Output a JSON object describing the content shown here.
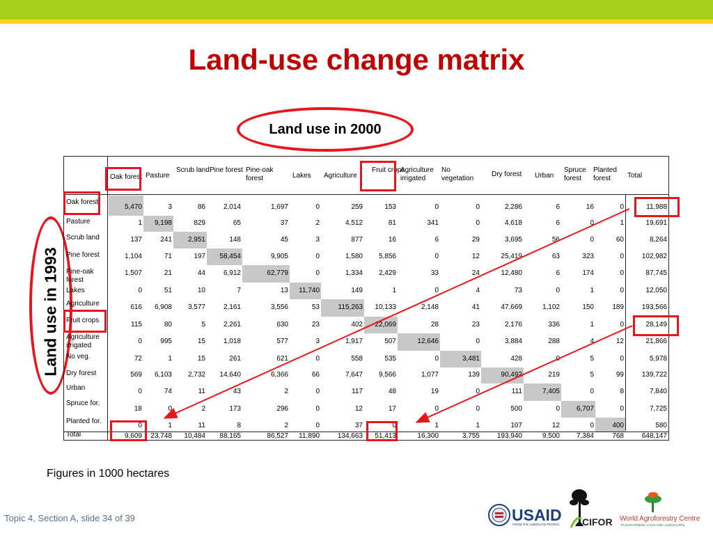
{
  "title": "Land-use change matrix",
  "label_x": "Land use in 2000",
  "label_y": "Land use in 1993",
  "columns": [
    "Oak forest",
    "Pasture",
    "Scrub land",
    "Pine forest",
    "Pine-oak forest",
    "Lakes",
    "Agriculture",
    "Fruit crops",
    "Agriculture irrigated",
    "No vegetation",
    "Dry forest",
    "Urban",
    "Spruce forest",
    "Planted forest",
    "Total"
  ],
  "rows": [
    {
      "label": "Oak forest",
      "values": [
        "5,470",
        "3",
        "86",
        "2,014",
        "1,697",
        "0",
        "259",
        "153",
        "0",
        "0",
        "2,286",
        "6",
        "16",
        "0",
        "11,988"
      ]
    },
    {
      "label": "Pasture",
      "values": [
        "1",
        "9,198",
        "829",
        "65",
        "37",
        "2",
        "4,512",
        "81",
        "341",
        "0",
        "4,618",
        "6",
        "0",
        "1",
        "19,691"
      ]
    },
    {
      "label": "Scrub land",
      "values": [
        "137",
        "241",
        "2,951",
        "148",
        "45",
        "3",
        "877",
        "16",
        "6",
        "29",
        "3,695",
        "56",
        "0",
        "60",
        "8,264"
      ]
    },
    {
      "label": "Pine forest",
      "values": [
        "1,104",
        "71",
        "197",
        "58,454",
        "9,905",
        "0",
        "1,580",
        "5,856",
        "0",
        "12",
        "25,419",
        "63",
        "323",
        "0",
        "102,982"
      ]
    },
    {
      "label": "Pine-oak forest",
      "values": [
        "1,507",
        "21",
        "44",
        "6,912",
        "62,779",
        "0",
        "1,334",
        "2,429",
        "33",
        "24",
        "12,480",
        "6",
        "174",
        "0",
        "87,745"
      ]
    },
    {
      "label": "Lakes",
      "values": [
        "0",
        "51",
        "10",
        "7",
        "13",
        "11,740",
        "149",
        "1",
        "0",
        "4",
        "73",
        "0",
        "1",
        "0",
        "12,050"
      ]
    },
    {
      "label": "Agriculture",
      "values": [
        "616",
        "6,908",
        "3,577",
        "2,161",
        "3,556",
        "53",
        "115,263",
        "10,133",
        "2,148",
        "41",
        "47,669",
        "1,102",
        "150",
        "189",
        "193,566"
      ]
    },
    {
      "label": "Fruit crops",
      "values": [
        "115",
        "80",
        "5",
        "2,261",
        "630",
        "23",
        "402",
        "22,069",
        "28",
        "23",
        "2,176",
        "336",
        "1",
        "0",
        "28,149"
      ]
    },
    {
      "label": "Agriculture irrigated",
      "values": [
        "0",
        "995",
        "15",
        "1,018",
        "577",
        "3",
        "1,917",
        "507",
        "12,646",
        "0",
        "3,884",
        "288",
        "4",
        "12",
        "21,866"
      ]
    },
    {
      "label": "No veg.",
      "values": [
        "72",
        "1",
        "15",
        "261",
        "621",
        "0",
        "558",
        "535",
        "0",
        "3,481",
        "428",
        "0",
        "5",
        "0",
        "5,978"
      ]
    },
    {
      "label": "Dry forest",
      "values": [
        "569",
        "6,103",
        "2,732",
        "14,640",
        "6,366",
        "66",
        "7,647",
        "9,566",
        "1,077",
        "139",
        "90,492",
        "219",
        "5",
        "99",
        "139,722"
      ]
    },
    {
      "label": "Urban",
      "values": [
        "0",
        "74",
        "11",
        "43",
        "2",
        "0",
        "117",
        "48",
        "19",
        "0",
        "111",
        "7,405",
        "0",
        "8",
        "7,840"
      ]
    },
    {
      "label": "Spruce for.",
      "values": [
        "18",
        "0",
        "2",
        "173",
        "296",
        "0",
        "12",
        "17",
        "0",
        "0",
        "500",
        "0",
        "6,707",
        "0",
        "7,725"
      ]
    },
    {
      "label": "Planted for.",
      "values": [
        "0",
        "1",
        "11",
        "8",
        "2",
        "0",
        "37",
        "0",
        "1",
        "1",
        "107",
        "12",
        "0",
        "400",
        "580"
      ]
    },
    {
      "label": "Total",
      "values": [
        "9,609",
        "23,748",
        "10,484",
        "88,165",
        "86,527",
        "11,890",
        "134,663",
        "51,413",
        "16,300",
        "3,755",
        "193,940",
        "9,500",
        "7,384",
        "768",
        "648,147"
      ]
    }
  ],
  "footnote": "Figures in 1000 hectares",
  "slide_info": "Topic 4, Section A, slide 34 of 39",
  "logos": {
    "usaid": "USAID",
    "usaid_tagline": "FROM THE AMERICAN PEOPLE",
    "cifor": "CIFOR",
    "icraf": "World Agroforestry Centre",
    "icraf_tagline": "TRANSFORMING LIVES AND LANDSCAPES"
  },
  "colors": {
    "title": "#c00000",
    "highlight": "#e8161c",
    "diagonal_shade": "#c8c8c8",
    "band_green": "#a6cf1a",
    "band_yellow": "#ffd21f"
  }
}
